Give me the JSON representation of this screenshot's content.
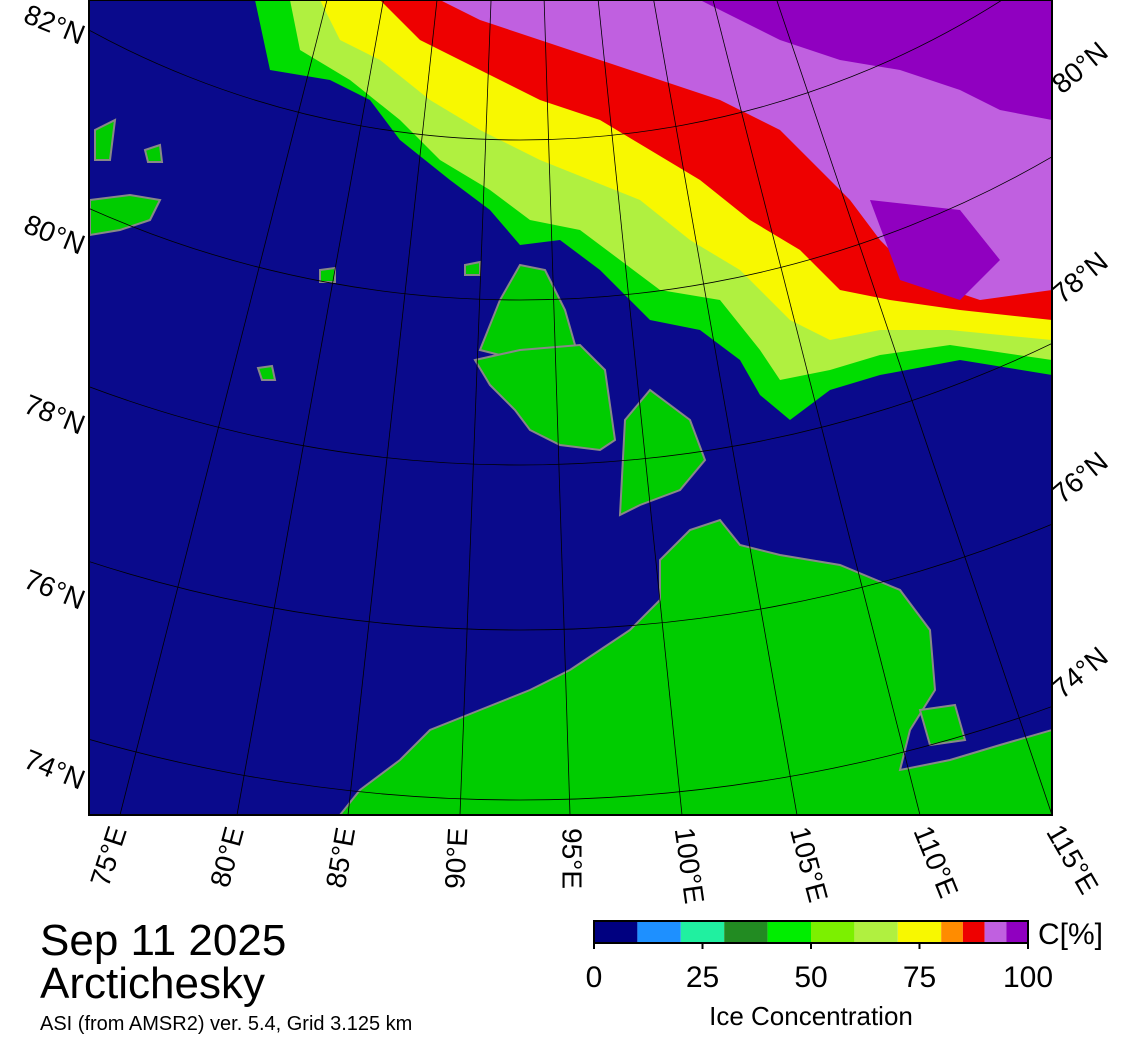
{
  "header": {
    "date": "Sep 11 2025",
    "region": "Arctichesky",
    "source": "ASI (from AMSR2) ver. 5.4,  Grid 3.125 km"
  },
  "map": {
    "lat_labels_left": [
      "82°N",
      "80°N",
      "78°N",
      "76°N",
      "74°N"
    ],
    "lat_labels_right": [
      "80°N",
      "78°N",
      "76°N",
      "74°N"
    ],
    "lon_labels": [
      "75°E",
      "80°E",
      "85°E",
      "90°E",
      "95°E",
      "100°E",
      "105°E",
      "110°E",
      "115°E"
    ]
  },
  "colorbar": {
    "unit": "C[%]",
    "title": "Ice Concentration",
    "ticks": [
      0,
      25,
      50,
      75,
      100
    ],
    "colors": [
      "#000080",
      "#1e90ff",
      "#20f0a0",
      "#228b22",
      "#00ee00",
      "#7cf000",
      "#b0f040",
      "#f8f800",
      "#ff8c00",
      "#ee0000",
      "#c060e0",
      "#9000c0"
    ]
  }
}
